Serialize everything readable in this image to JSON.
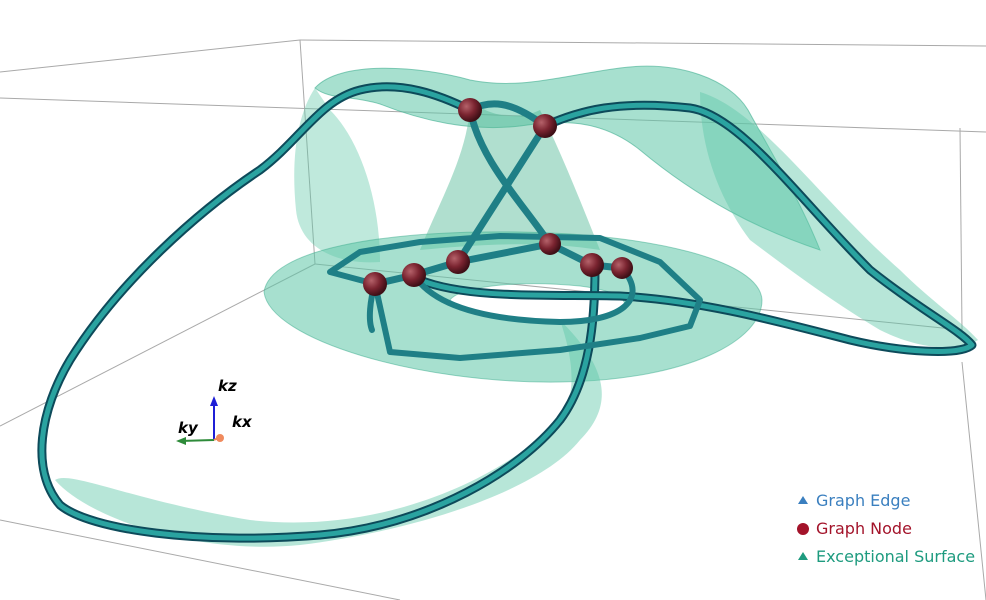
{
  "axes_widget": {
    "z_label": "kz",
    "y_label": "ky",
    "x_label": "kx",
    "colors": {
      "z": "#1f1fd6",
      "y": "#2e8b3a",
      "x": "#f08a5d"
    }
  },
  "legend": {
    "items": [
      {
        "label": "Graph Edge",
        "icon": "triangle-icon",
        "color": "#3a7fbf"
      },
      {
        "label": "Graph Node",
        "icon": "circle-icon",
        "color": "#a3132a"
      },
      {
        "label": "Exceptional Surface",
        "icon": "triangle-icon",
        "color": "#1e9b7f"
      }
    ]
  },
  "colors": {
    "bounding_box": "#a9a9a9",
    "surface_fill": "#5fc7a8",
    "edge_tube": "#1f7f86",
    "edge_tube_dark": "#0d4a5a",
    "node": "#7a1f2a"
  }
}
